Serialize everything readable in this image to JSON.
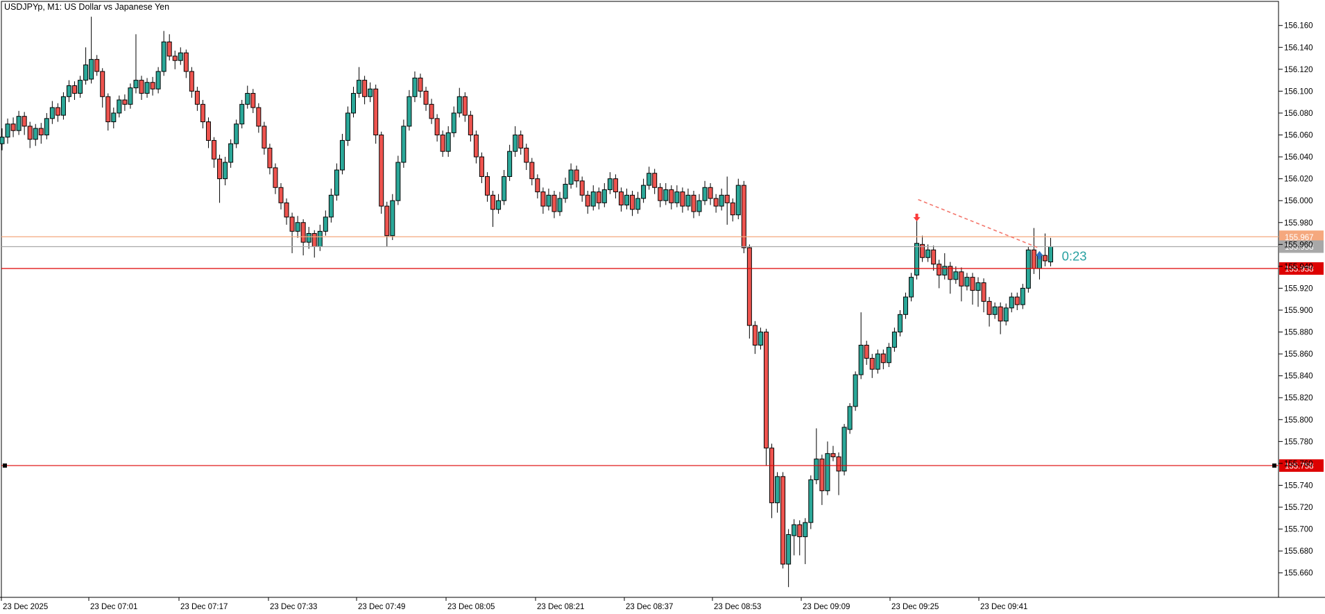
{
  "window": {
    "title": "USDJPYp, M1:  US Dollar vs Japanese Yen",
    "symbol": "USDJPYp",
    "timeframe": "M1",
    "description": "US Dollar vs Japanese Yen"
  },
  "colors": {
    "background": "#ffffff",
    "border": "#000000",
    "candle_up": "#2ba899",
    "candle_down": "#ee544f",
    "candle_outline": "#000000",
    "wick": "#000000",
    "level_salmon": "#f5a87e",
    "level_gray": "#a8a8a8",
    "level_red": "#dd0101",
    "trendline_dashed": "#f3766c",
    "sell_arrow": "#fb3a3a",
    "buy_arrow": "#2e72c2",
    "timer_text": "#28a1a1",
    "axis_text": "#000000",
    "label_text": "#ffffff"
  },
  "price_axis": {
    "labels": [
      "156.160",
      "156.140",
      "156.120",
      "156.100",
      "156.080",
      "156.060",
      "156.040",
      "156.020",
      "156.000",
      "155.980",
      "155.960",
      "155.940",
      "155.920",
      "155.900",
      "155.880",
      "155.860",
      "155.840",
      "155.820",
      "155.800",
      "155.780",
      "155.760",
      "155.740",
      "155.720",
      "155.700",
      "155.680",
      "155.660"
    ]
  },
  "time_axis": {
    "labels": [
      {
        "text": "23 Dec 2025",
        "x": 2
      },
      {
        "text": "23 Dec 07:01",
        "x": 128
      },
      {
        "text": "23 Dec 07:17",
        "x": 258
      },
      {
        "text": "23 Dec 07:33",
        "x": 387
      },
      {
        "text": "23 Dec 07:49",
        "x": 514
      },
      {
        "text": "23 Dec 08:05",
        "x": 643
      },
      {
        "text": "23 Dec 08:21",
        "x": 772
      },
      {
        "text": "23 Dec 08:37",
        "x": 900
      },
      {
        "text": "23 Dec 08:53",
        "x": 1027
      },
      {
        "text": "23 Dec 09:09",
        "x": 1155
      },
      {
        "text": "23 Dec 09:25",
        "x": 1283
      },
      {
        "text": "23 Dec 09:41",
        "x": 1411
      }
    ]
  },
  "levels": [
    {
      "name": "alert-line",
      "price": 155.967,
      "label": "155.967",
      "color": "#f5a87e",
      "endpoints": false
    },
    {
      "name": "bid-line",
      "price": 155.958,
      "label": "155.958",
      "color": "#a8a8a8",
      "endpoints": false
    },
    {
      "name": "support-line-1",
      "price": 155.938,
      "label": "155.938",
      "color": "#dd0101",
      "endpoints": false
    },
    {
      "name": "support-line-2",
      "price": 155.758,
      "label": "155.758",
      "color": "#dd0101",
      "endpoints": true
    }
  ],
  "annotations": {
    "timer": {
      "text": "0:23",
      "x_index": 190.0,
      "price": 155.949
    },
    "sell_arrow": {
      "x_index": 164,
      "price": 155.99
    },
    "buy_arrow": {
      "x_index": 186,
      "price": 155.954
    },
    "trendline": {
      "from_index": 164,
      "from_price": 156.001,
      "to_index": 186,
      "to_price": 155.957
    }
  },
  "chart_data": {
    "type": "candlestick",
    "title": "USDJPYp, M1:  US Dollar vs Japanese Yen",
    "start_time": "23 Dec 2025 06:45",
    "interval_minutes": 1,
    "ylim": [
      155.635,
      156.182
    ],
    "grid": false,
    "candles": [
      [
        156.052,
        156.066,
        156.046,
        156.058
      ],
      [
        156.058,
        156.075,
        156.052,
        156.07
      ],
      [
        156.07,
        156.076,
        156.058,
        156.064
      ],
      [
        156.064,
        156.082,
        156.06,
        156.077
      ],
      [
        156.077,
        156.081,
        156.06,
        156.068
      ],
      [
        156.068,
        156.072,
        156.048,
        156.056
      ],
      [
        156.056,
        156.07,
        156.05,
        156.066
      ],
      [
        156.066,
        156.071,
        156.052,
        156.06
      ],
      [
        156.06,
        156.08,
        156.056,
        156.075
      ],
      [
        156.075,
        156.091,
        156.07,
        156.085
      ],
      [
        156.085,
        156.089,
        156.072,
        156.078
      ],
      [
        156.078,
        156.099,
        156.074,
        156.095
      ],
      [
        156.095,
        156.11,
        156.09,
        156.105
      ],
      [
        156.105,
        156.109,
        156.092,
        156.098
      ],
      [
        156.098,
        156.114,
        156.094,
        156.11
      ],
      [
        156.11,
        156.14,
        156.106,
        156.124
      ],
      [
        156.111,
        156.168,
        156.107,
        156.129
      ],
      [
        156.129,
        156.133,
        156.114,
        156.118
      ],
      [
        156.118,
        156.121,
        156.085,
        156.095
      ],
      [
        156.095,
        156.098,
        156.064,
        156.072
      ],
      [
        156.072,
        156.085,
        156.066,
        156.08
      ],
      [
        156.08,
        156.096,
        156.076,
        156.092
      ],
      [
        156.092,
        156.097,
        156.082,
        156.088
      ],
      [
        156.088,
        156.107,
        156.084,
        156.103
      ],
      [
        156.103,
        156.152,
        156.098,
        156.11
      ],
      [
        156.11,
        156.114,
        156.092,
        156.098
      ],
      [
        156.098,
        156.112,
        156.094,
        156.108
      ],
      [
        156.108,
        156.113,
        156.096,
        156.102
      ],
      [
        156.102,
        156.122,
        156.098,
        156.118
      ],
      [
        156.118,
        156.155,
        156.114,
        156.145
      ],
      [
        156.145,
        156.152,
        156.128,
        156.132
      ],
      [
        156.132,
        156.137,
        156.12,
        156.128
      ],
      [
        156.128,
        156.14,
        156.124,
        156.135
      ],
      [
        156.135,
        156.138,
        156.112,
        156.118
      ],
      [
        156.118,
        156.122,
        156.094,
        156.1
      ],
      [
        156.1,
        156.104,
        156.082,
        156.088
      ],
      [
        156.088,
        156.092,
        156.066,
        156.072
      ],
      [
        156.072,
        156.076,
        156.048,
        156.055
      ],
      [
        156.055,
        156.058,
        156.03,
        156.038
      ],
      [
        156.038,
        156.042,
        155.998,
        156.02
      ],
      [
        156.02,
        156.04,
        156.014,
        156.035
      ],
      [
        156.035,
        156.056,
        156.03,
        156.052
      ],
      [
        156.052,
        156.074,
        156.048,
        156.07
      ],
      [
        156.07,
        156.092,
        156.066,
        156.088
      ],
      [
        156.088,
        156.105,
        156.084,
        156.098
      ],
      [
        156.098,
        156.102,
        156.08,
        156.085
      ],
      [
        156.085,
        156.089,
        156.062,
        156.068
      ],
      [
        156.068,
        156.072,
        156.042,
        156.048
      ],
      [
        156.048,
        156.052,
        156.024,
        156.03
      ],
      [
        156.03,
        156.034,
        156.006,
        156.012
      ],
      [
        156.012,
        156.016,
        155.992,
        155.998
      ],
      [
        155.998,
        156.002,
        155.978,
        155.985
      ],
      [
        155.985,
        155.989,
        155.952,
        155.972
      ],
      [
        155.972,
        155.986,
        155.966,
        155.98
      ],
      [
        155.98,
        155.983,
        155.95,
        155.962
      ],
      [
        155.962,
        155.976,
        155.956,
        155.97
      ],
      [
        155.97,
        155.973,
        155.948,
        155.958
      ],
      [
        155.958,
        155.978,
        155.954,
        155.972
      ],
      [
        155.972,
        155.991,
        155.968,
        155.985
      ],
      [
        155.985,
        156.011,
        155.98,
        156.005
      ],
      [
        156.005,
        156.034,
        156.0,
        156.028
      ],
      [
        156.028,
        156.061,
        156.024,
        156.055
      ],
      [
        156.055,
        156.086,
        156.05,
        156.08
      ],
      [
        156.08,
        156.104,
        156.076,
        156.098
      ],
      [
        156.098,
        156.122,
        156.094,
        156.11
      ],
      [
        156.11,
        156.114,
        156.088,
        156.095
      ],
      [
        156.095,
        156.108,
        156.09,
        156.102
      ],
      [
        156.102,
        156.106,
        156.052,
        156.06
      ],
      [
        156.06,
        156.063,
        155.988,
        155.995
      ],
      [
        155.995,
        155.999,
        155.958,
        155.968
      ],
      [
        155.968,
        156.006,
        155.964,
        156.0
      ],
      [
        156.0,
        156.041,
        155.996,
        156.035
      ],
      [
        156.035,
        156.074,
        156.03,
        156.068
      ],
      [
        156.068,
        156.101,
        156.064,
        156.095
      ],
      [
        156.095,
        156.118,
        156.09,
        156.112
      ],
      [
        156.112,
        156.116,
        156.094,
        156.1
      ],
      [
        156.1,
        156.104,
        156.082,
        156.088
      ],
      [
        156.088,
        156.093,
        156.07,
        156.075
      ],
      [
        156.075,
        156.079,
        156.054,
        156.06
      ],
      [
        156.06,
        156.064,
        156.04,
        156.045
      ],
      [
        156.045,
        156.068,
        156.04,
        156.062
      ],
      [
        156.062,
        156.086,
        156.058,
        156.08
      ],
      [
        156.08,
        156.103,
        156.076,
        156.095
      ],
      [
        156.095,
        156.099,
        156.072,
        156.078
      ],
      [
        156.078,
        156.082,
        156.054,
        156.06
      ],
      [
        156.06,
        156.064,
        156.034,
        156.04
      ],
      [
        156.04,
        156.044,
        156.016,
        156.022
      ],
      [
        156.022,
        156.026,
        155.999,
        156.005
      ],
      [
        156.005,
        156.009,
        155.976,
        155.992
      ],
      [
        155.992,
        156.006,
        155.988,
        156.0
      ],
      [
        156.0,
        156.028,
        155.996,
        156.022
      ],
      [
        156.022,
        156.051,
        156.018,
        156.045
      ],
      [
        156.045,
        156.068,
        156.04,
        156.06
      ],
      [
        156.06,
        156.064,
        156.042,
        156.048
      ],
      [
        156.048,
        156.052,
        156.028,
        156.035
      ],
      [
        156.035,
        156.039,
        156.014,
        156.02
      ],
      [
        156.02,
        156.024,
        156.002,
        156.008
      ],
      [
        156.008,
        156.012,
        155.988,
        155.995
      ],
      [
        155.995,
        156.011,
        155.991,
        156.005
      ],
      [
        156.005,
        156.009,
        155.984,
        155.99
      ],
      [
        155.99,
        156.008,
        155.986,
        156.002
      ],
      [
        156.002,
        156.021,
        155.998,
        156.015
      ],
      [
        156.015,
        156.034,
        156.011,
        156.028
      ],
      [
        156.028,
        156.032,
        156.012,
        156.018
      ],
      [
        156.018,
        156.022,
        155.999,
        156.005
      ],
      [
        156.005,
        156.009,
        155.988,
        155.995
      ],
      [
        155.995,
        156.014,
        155.991,
        156.008
      ],
      [
        156.008,
        156.012,
        155.992,
        155.998
      ],
      [
        155.998,
        156.016,
        155.994,
        156.01
      ],
      [
        156.01,
        156.026,
        156.006,
        156.02
      ],
      [
        156.02,
        156.024,
        156.002,
        156.008
      ],
      [
        156.008,
        156.012,
        155.99,
        155.996
      ],
      [
        155.996,
        156.011,
        155.992,
        156.005
      ],
      [
        156.005,
        156.009,
        155.986,
        155.992
      ],
      [
        155.992,
        156.008,
        155.988,
        156.002
      ],
      [
        156.002,
        156.02,
        155.998,
        156.014
      ],
      [
        156.014,
        156.031,
        156.01,
        156.025
      ],
      [
        156.025,
        156.029,
        156.006,
        156.012
      ],
      [
        156.012,
        156.016,
        155.994,
        156.0
      ],
      [
        156.0,
        156.016,
        155.996,
        156.01
      ],
      [
        156.01,
        156.014,
        155.992,
        155.998
      ],
      [
        155.998,
        156.014,
        155.994,
        156.008
      ],
      [
        156.008,
        156.012,
        155.989,
        155.995
      ],
      [
        155.995,
        156.011,
        155.991,
        156.005
      ],
      [
        156.005,
        156.009,
        155.984,
        155.99
      ],
      [
        155.99,
        156.006,
        155.986,
        156.0
      ],
      [
        156.0,
        156.018,
        155.996,
        156.012
      ],
      [
        156.012,
        156.016,
        155.996,
        156.002
      ],
      [
        156.002,
        156.006,
        155.989,
        155.995
      ],
      [
        155.995,
        156.011,
        155.991,
        156.005
      ],
      [
        156.005,
        156.022,
        155.978,
        155.998
      ],
      [
        155.998,
        156.002,
        155.981,
        155.987
      ],
      [
        155.987,
        156.02,
        155.983,
        156.014
      ],
      [
        156.014,
        156.018,
        155.952,
        155.957
      ],
      [
        155.957,
        155.96,
        155.874,
        155.886
      ],
      [
        155.886,
        155.89,
        155.86,
        155.868
      ],
      [
        155.868,
        155.884,
        155.864,
        155.88
      ],
      [
        155.88,
        155.883,
        155.758,
        155.774
      ],
      [
        155.774,
        155.778,
        155.71,
        155.724
      ],
      [
        155.724,
        155.752,
        155.715,
        155.748
      ],
      [
        155.748,
        155.752,
        155.664,
        155.668
      ],
      [
        155.668,
        155.7,
        155.647,
        155.695
      ],
      [
        155.694,
        155.709,
        155.676,
        155.704
      ],
      [
        155.704,
        155.708,
        155.676,
        155.693
      ],
      [
        155.693,
        155.71,
        155.668,
        155.706
      ],
      [
        155.706,
        155.749,
        155.7,
        155.745
      ],
      [
        155.745,
        155.792,
        155.741,
        155.764
      ],
      [
        155.764,
        155.768,
        155.722,
        155.735
      ],
      [
        155.735,
        155.78,
        155.731,
        155.769
      ],
      [
        155.769,
        155.776,
        155.762,
        155.766
      ],
      [
        155.766,
        155.77,
        155.731,
        155.753
      ],
      [
        155.753,
        155.796,
        155.749,
        155.793
      ],
      [
        155.791,
        155.815,
        155.787,
        155.812
      ],
      [
        155.812,
        155.844,
        155.808,
        155.841
      ],
      [
        155.841,
        155.898,
        155.837,
        155.868
      ],
      [
        155.868,
        155.872,
        155.85,
        155.856
      ],
      [
        155.856,
        155.86,
        155.838,
        155.846
      ],
      [
        155.846,
        155.864,
        155.842,
        155.86
      ],
      [
        155.86,
        155.864,
        155.846,
        155.852
      ],
      [
        155.852,
        155.87,
        155.848,
        155.866
      ],
      [
        155.866,
        155.884,
        155.862,
        155.88
      ],
      [
        155.88,
        155.9,
        155.876,
        155.896
      ],
      [
        155.896,
        155.916,
        155.892,
        155.912
      ],
      [
        155.912,
        155.934,
        155.908,
        155.93
      ],
      [
        155.932,
        155.984,
        155.928,
        155.961
      ],
      [
        155.96,
        155.968,
        155.944,
        155.948
      ],
      [
        155.948,
        155.96,
        155.944,
        155.955
      ],
      [
        155.955,
        155.959,
        155.936,
        155.942
      ],
      [
        155.942,
        155.946,
        155.92,
        155.932
      ],
      [
        155.932,
        155.952,
        155.928,
        155.94
      ],
      [
        155.94,
        155.944,
        155.915,
        155.928
      ],
      [
        155.928,
        155.94,
        155.924,
        155.935
      ],
      [
        155.935,
        155.939,
        155.908,
        155.922
      ],
      [
        155.922,
        155.934,
        155.918,
        155.93
      ],
      [
        155.93,
        155.934,
        155.905,
        155.918
      ],
      [
        155.918,
        155.93,
        155.903,
        155.925
      ],
      [
        155.925,
        155.929,
        155.898,
        155.908
      ],
      [
        155.908,
        155.912,
        155.885,
        155.896
      ],
      [
        155.896,
        155.907,
        155.892,
        155.903
      ],
      [
        155.903,
        155.907,
        155.878,
        155.89
      ],
      [
        155.89,
        155.906,
        155.886,
        155.902
      ],
      [
        155.902,
        155.916,
        155.898,
        155.912
      ],
      [
        155.912,
        155.916,
        155.9,
        155.905
      ],
      [
        155.905,
        155.924,
        155.901,
        155.92
      ],
      [
        155.92,
        155.958,
        155.916,
        155.955
      ],
      [
        155.955,
        155.975,
        155.933,
        155.938
      ],
      [
        155.938,
        155.952,
        155.928,
        155.95
      ],
      [
        155.95,
        155.97,
        155.94,
        155.945
      ],
      [
        155.944,
        155.966,
        155.94,
        155.958
      ]
    ]
  }
}
